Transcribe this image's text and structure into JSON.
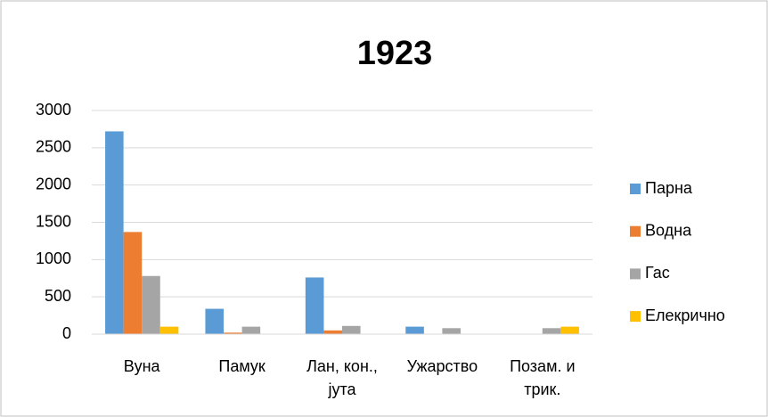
{
  "chart_data": {
    "type": "bar",
    "title": "1923",
    "categories": [
      "Вуна",
      "Памук",
      "Лан, кон., јута",
      "Ужарство",
      "Позам. и трик."
    ],
    "series": [
      {
        "name": "Парна",
        "color": "#5b9bd5",
        "values": [
          2720,
          340,
          760,
          100,
          0
        ]
      },
      {
        "name": "Водна",
        "color": "#ed7d31",
        "values": [
          1370,
          20,
          50,
          0,
          0
        ]
      },
      {
        "name": "Гас",
        "color": "#a5a5a5",
        "values": [
          780,
          100,
          110,
          80,
          80
        ]
      },
      {
        "name": "Елекрично",
        "color": "#ffc000",
        "values": [
          100,
          0,
          0,
          0,
          100
        ]
      }
    ],
    "ylim": [
      0,
      3000
    ],
    "yticks": [
      0,
      500,
      1000,
      1500,
      2000,
      2500,
      3000
    ],
    "grid": true,
    "legend": "right"
  }
}
